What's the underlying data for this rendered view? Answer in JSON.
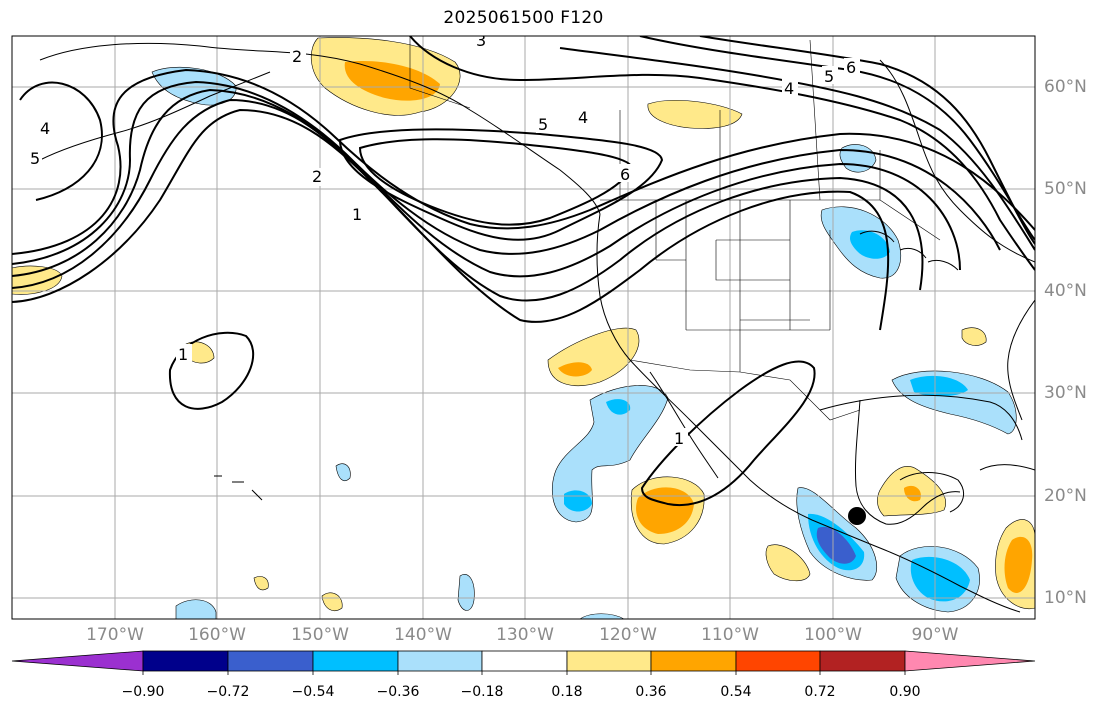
{
  "title": "2025061500 F120",
  "lon_labels": [
    "170°W",
    "160°W",
    "150°W",
    "140°W",
    "130°W",
    "120°W",
    "110°W",
    "100°W",
    "90°W"
  ],
  "lat_labels": [
    "60°N",
    "50°N",
    "40°N",
    "30°N",
    "20°N",
    "10°N"
  ],
  "contour_labels": [
    "3",
    "2",
    "4",
    "5",
    "2",
    "1",
    "5",
    "4",
    "6",
    "5",
    "6",
    "4",
    "1",
    "1"
  ],
  "colorbar": {
    "ticks": [
      "−0.90",
      "−0.72",
      "−0.54",
      "−0.36",
      "−0.18",
      "0.18",
      "0.36",
      "0.54",
      "0.72",
      "0.90"
    ],
    "colors": [
      "#9b30d0",
      "#00008b",
      "#3a5fcd",
      "#00bfff",
      "#aae0fb",
      "#ffffff",
      "#ffe98a",
      "#ffa500",
      "#ff4500",
      "#b22222",
      "#ff88b0"
    ]
  },
  "colors": {
    "gridline": "#aaaaaa",
    "coastline": "#000000",
    "label_gray": "#8a8a8a"
  },
  "marker": "storm-center-dot"
}
